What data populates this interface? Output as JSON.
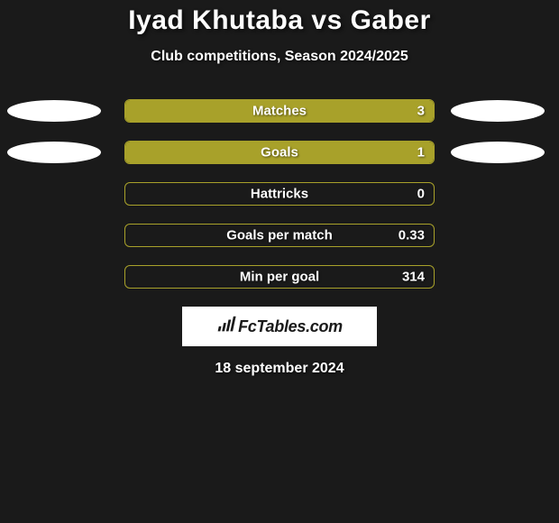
{
  "background_color": "#1a1a1a",
  "title": "Iyad Khutaba vs Gaber",
  "title_color": "#ffffff",
  "title_fontsize": 30,
  "subtitle": "Club competitions, Season 2024/2025",
  "subtitle_color": "#ffffff",
  "subtitle_fontsize": 16,
  "ellipse_color": "#ffffff",
  "bars": {
    "outer_width": 344,
    "outer_height": 26,
    "border_radius": 6,
    "label_fontsize": 15,
    "value_fontsize": 15,
    "text_color": "#ffffff",
    "items": [
      {
        "label": "Matches",
        "value": "3",
        "fill_pct": 100,
        "fill_color": "#a8a12a",
        "border_color": "#a8a12a",
        "show_ellipses": true
      },
      {
        "label": "Goals",
        "value": "1",
        "fill_pct": 100,
        "fill_color": "#a8a12a",
        "border_color": "#a8a12a",
        "show_ellipses": true
      },
      {
        "label": "Hattricks",
        "value": "0",
        "fill_pct": 0,
        "fill_color": "#a8a12a",
        "border_color": "#a8a12a",
        "show_ellipses": false
      },
      {
        "label": "Goals per match",
        "value": "0.33",
        "fill_pct": 0,
        "fill_color": "#a8a12a",
        "border_color": "#a8a12a",
        "show_ellipses": false
      },
      {
        "label": "Min per goal",
        "value": "314",
        "fill_pct": 0,
        "fill_color": "#a8a12a",
        "border_color": "#a8a12a",
        "show_ellipses": false
      }
    ]
  },
  "logo": {
    "text": "FcTables.com",
    "box_bg": "#ffffff",
    "text_color": "#1a1a1a",
    "icon_color": "#1a1a1a"
  },
  "date": "18 september 2024",
  "date_color": "#ffffff"
}
